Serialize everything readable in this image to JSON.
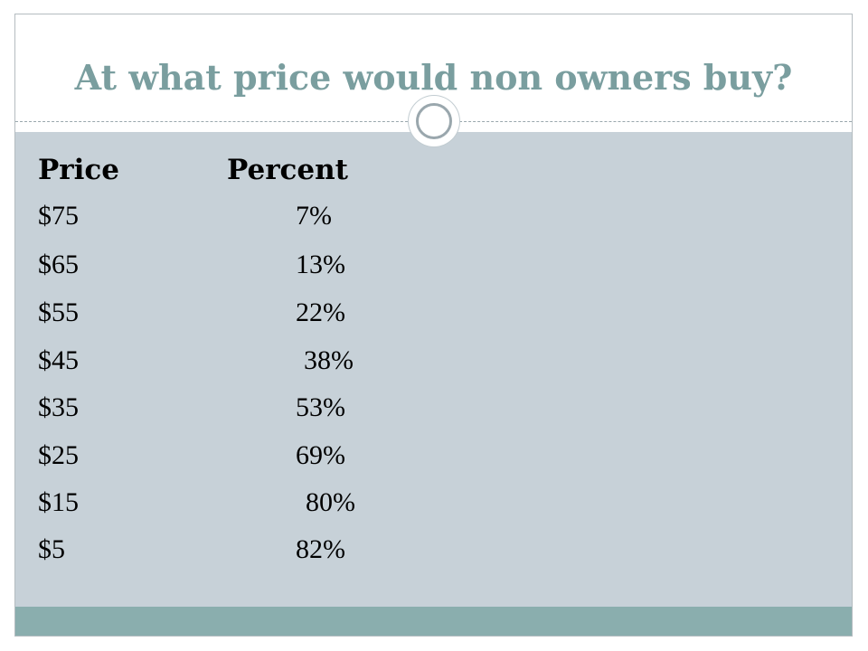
{
  "slide": {
    "title": "At what price would non owners buy?",
    "colors": {
      "title": "#7a9e9f",
      "content_bg": "#c7d1d8",
      "footer_bg": "#8aaeae"
    },
    "icon": "circle-ring-icon"
  },
  "table": {
    "headers": {
      "price": "Price",
      "percent": "Percent"
    },
    "rows": [
      {
        "price": "$75",
        "percent": "7%"
      },
      {
        "price": "$65",
        "percent": "13%"
      },
      {
        "price": "$55",
        "percent": "22%"
      },
      {
        "price": "$45",
        "percent": "38%"
      },
      {
        "price": "$35",
        "percent": "53%"
      },
      {
        "price": "$25",
        "percent": "69%"
      },
      {
        "price": "$15",
        "percent": "80%"
      },
      {
        "price": "$5",
        "percent": "82%"
      }
    ]
  }
}
